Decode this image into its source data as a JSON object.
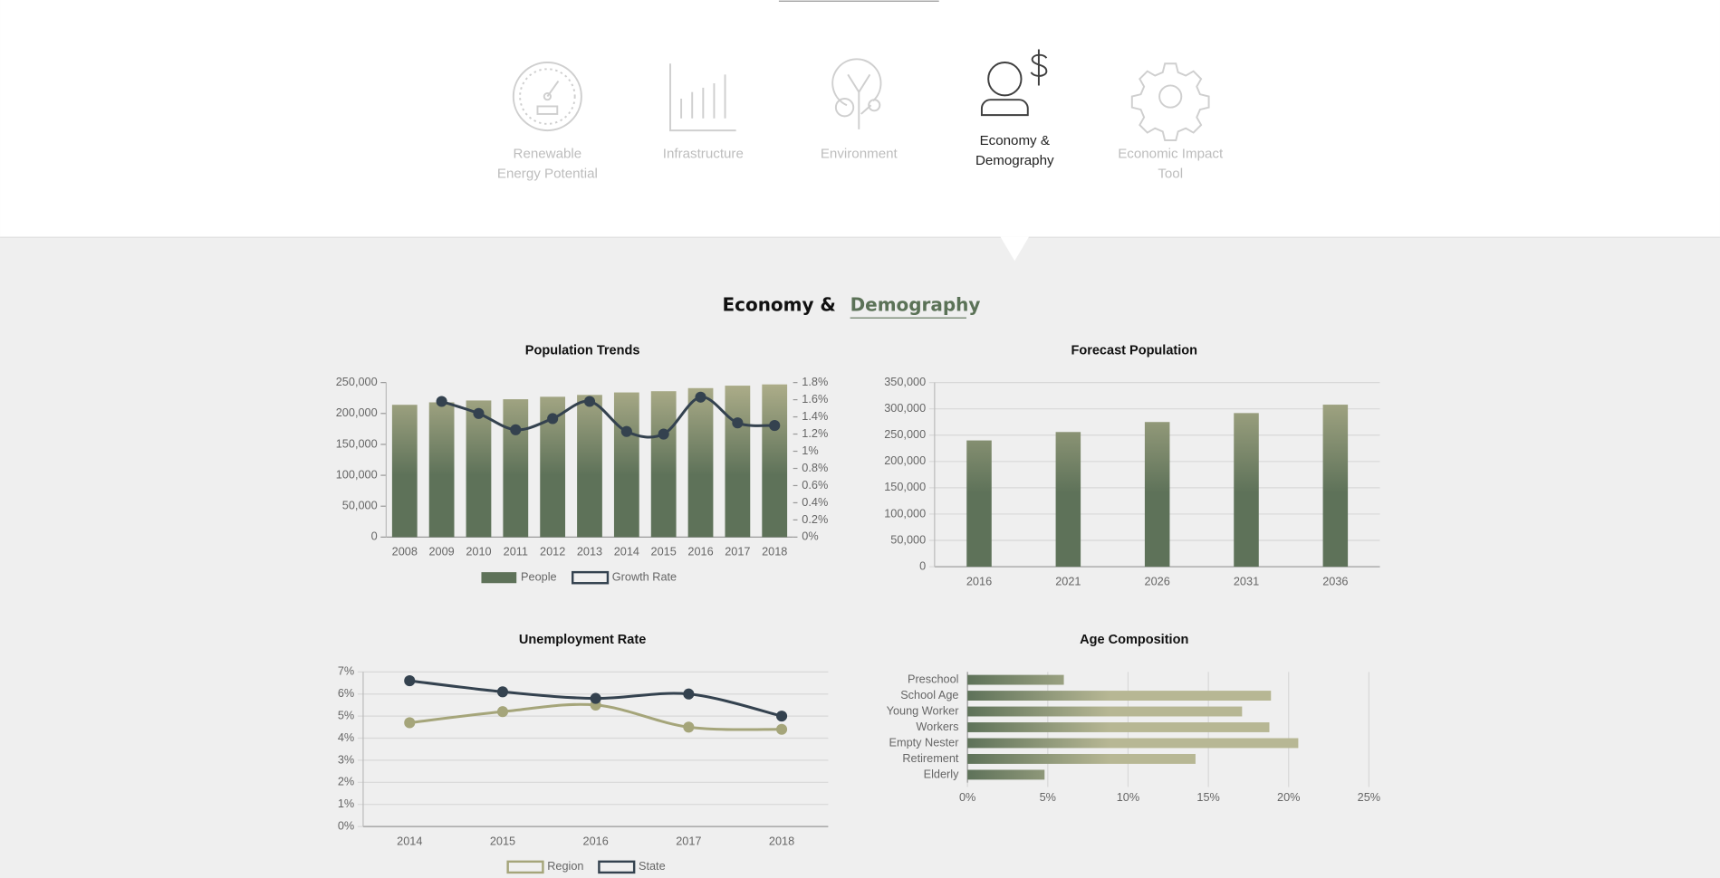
{
  "nav": [
    {
      "lines": [
        "Renewable",
        "Energy Potential"
      ],
      "active": false
    },
    {
      "lines": [
        "Infrastructure"
      ],
      "active": false
    },
    {
      "lines": [
        "Environment"
      ],
      "active": false
    },
    {
      "lines": [
        "Economy &",
        "Demography"
      ],
      "active": true
    },
    {
      "lines": [
        "Economic Impact",
        "Tool"
      ],
      "active": false
    }
  ],
  "section_title": [
    "Economy &",
    "Demography"
  ],
  "chart_data": [
    {
      "type": "bar",
      "title": "Population Trends",
      "categories": [
        "2008",
        "2009",
        "2010",
        "2011",
        "2012",
        "2013",
        "2014",
        "2015",
        "2016",
        "2017",
        "2018"
      ],
      "series": [
        {
          "name": "People",
          "color": "#5e7259",
          "gradient": [
            "#aeae8a",
            "#5e7259"
          ],
          "values": [
            214000,
            218000,
            221000,
            223000,
            227000,
            230000,
            234000,
            236000,
            241000,
            245000,
            247000
          ]
        },
        {
          "name": "Growth Rate",
          "type": "line",
          "axis": "y2",
          "color": "#34424f",
          "values": [
            null,
            1.58,
            1.44,
            1.25,
            1.38,
            1.58,
            1.23,
            1.2,
            1.63,
            1.33,
            1.3
          ]
        }
      ],
      "ylim": [
        0,
        250000
      ],
      "yticks": [
        0,
        {
          "value": 50000,
          "label": "50,000"
        },
        {
          "value": 100000,
          "label": "100,000"
        },
        {
          "value": 150000,
          "label": "150,000"
        },
        {
          "value": 200000,
          "label": "200,000"
        },
        {
          "value": 250000,
          "label": "250,000"
        }
      ],
      "y2lim": [
        0,
        1.8
      ],
      "y2ticks": [
        {
          "value": 0,
          "label": "0%"
        },
        {
          "value": 0.2,
          "label": "0.2%"
        },
        {
          "value": 0.4,
          "label": "0.4%"
        },
        {
          "value": 0.6,
          "label": "0.6%"
        },
        {
          "value": 0.8,
          "label": "0.8%"
        },
        {
          "value": 1,
          "label": "1%"
        },
        {
          "value": 1.2,
          "label": "1.2%"
        },
        {
          "value": 1.4,
          "label": "1.4%"
        },
        {
          "value": 1.6,
          "label": "1.6%"
        },
        {
          "value": 1.8,
          "label": "1.8%"
        }
      ],
      "grid": false,
      "legend": "bottom"
    },
    {
      "type": "bar",
      "title": "Forecast Population",
      "categories": [
        "2016",
        "2021",
        "2026",
        "2031",
        "2036"
      ],
      "series": [
        {
          "name": "Forecast Population",
          "color": "#5e7259",
          "gradient": [
            "#aeae8a",
            "#5e7259"
          ],
          "values": [
            240000,
            256000,
            275000,
            292000,
            308000
          ]
        }
      ],
      "ylim": [
        0,
        350000
      ],
      "yticks": [
        0,
        {
          "value": 50000,
          "label": "50,000"
        },
        {
          "value": 100000,
          "label": "100,000"
        },
        {
          "value": 150000,
          "label": "150,000"
        },
        {
          "value": 200000,
          "label": "200,000"
        },
        {
          "value": 250000,
          "label": "250,000"
        },
        {
          "value": 300000,
          "label": "300,000"
        },
        {
          "value": 350000,
          "label": "350,000"
        }
      ],
      "grid": true,
      "legend": "none"
    },
    {
      "type": "line",
      "title": "Unemployment Rate",
      "categories": [
        "2014",
        "2015",
        "2016",
        "2017",
        "2018"
      ],
      "series": [
        {
          "name": "Region",
          "color": "#a5a57a",
          "values": [
            4.7,
            5.2,
            5.5,
            4.5,
            4.4
          ]
        },
        {
          "name": "State",
          "color": "#34424f",
          "values": [
            6.6,
            6.1,
            5.8,
            6.0,
            5.0
          ]
        }
      ],
      "ylim": [
        0,
        7
      ],
      "yticks": [
        {
          "value": 0,
          "label": "0%"
        },
        {
          "value": 1,
          "label": "1%"
        },
        {
          "value": 2,
          "label": "2%"
        },
        {
          "value": 3,
          "label": "3%"
        },
        {
          "value": 4,
          "label": "4%"
        },
        {
          "value": 5,
          "label": "5%"
        },
        {
          "value": 6,
          "label": "6%"
        },
        {
          "value": 7,
          "label": "7%"
        }
      ],
      "grid": true,
      "legend": "bottom"
    },
    {
      "type": "barh",
      "title": "Age Composition",
      "categories": [
        "Preschool",
        "School Age",
        "Young Worker",
        "Workers",
        "Empty Nester",
        "Retirement",
        "Elderly"
      ],
      "series": [
        {
          "name": "Age Composition",
          "color": "#5e7259",
          "gradient": [
            "#5e7259",
            "#b7b794"
          ],
          "values": [
            6.0,
            18.9,
            17.1,
            18.8,
            20.6,
            14.2,
            4.8
          ]
        }
      ],
      "xlim": [
        0,
        25
      ],
      "xticks": [
        {
          "value": 0,
          "label": "0%"
        },
        {
          "value": 5,
          "label": "5%"
        },
        {
          "value": 10,
          "label": "10%"
        },
        {
          "value": 15,
          "label": "15%"
        },
        {
          "value": 20,
          "label": "20%"
        },
        {
          "value": 25,
          "label": "25%"
        }
      ],
      "grid": true,
      "legend": "none"
    }
  ]
}
